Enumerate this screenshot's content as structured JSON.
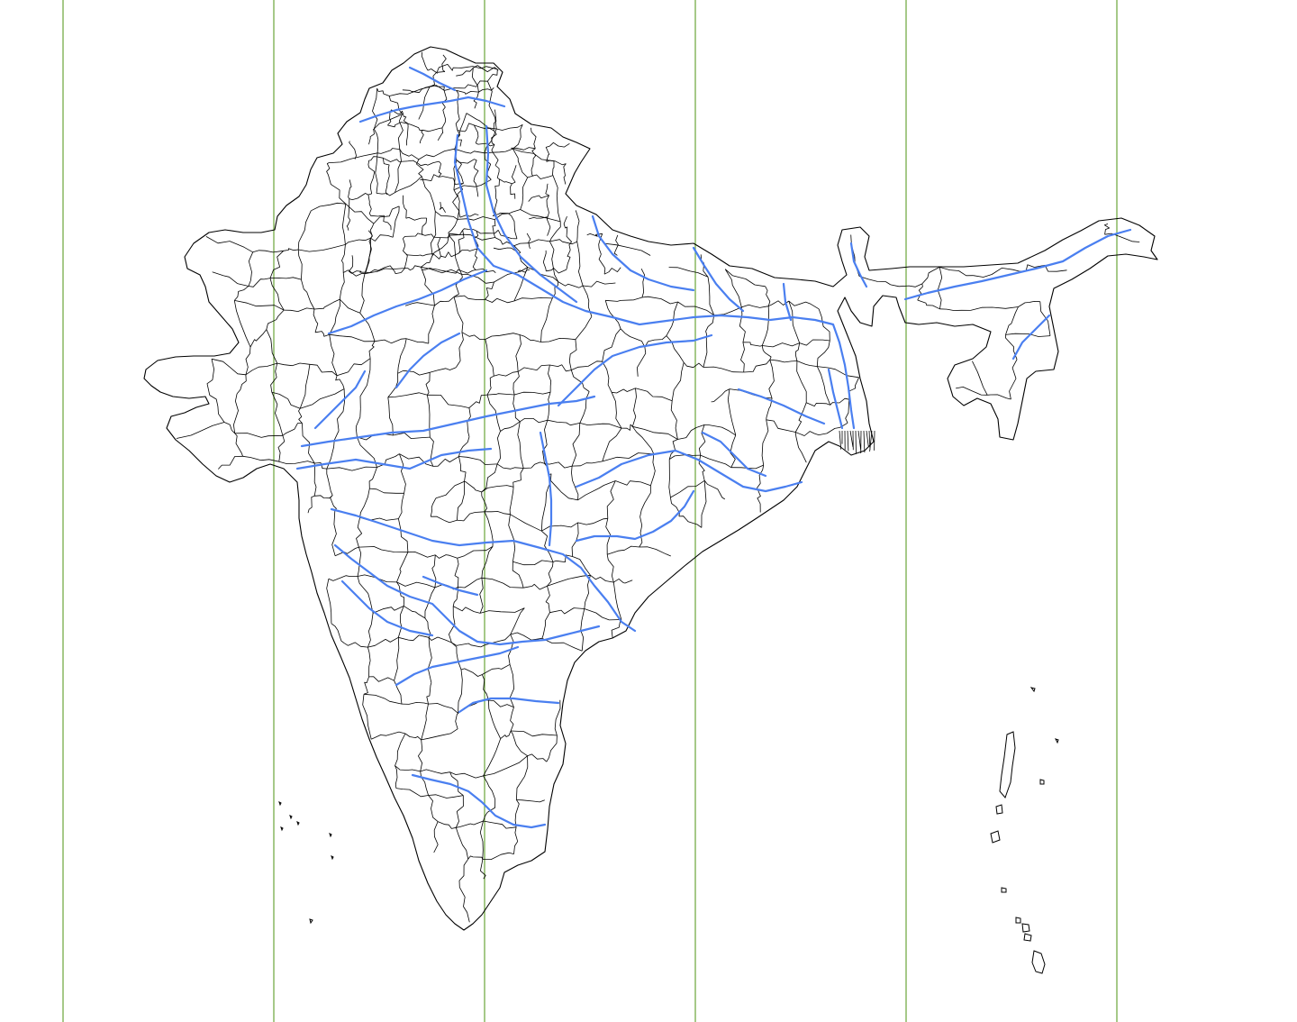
{
  "map": {
    "type": "district-map",
    "meridian_count": 6,
    "colors": {
      "background": "#ffffff",
      "district_border": "#000000",
      "river": "#4a7ff0",
      "meridian": "#6aa53a"
    },
    "layers": [
      "meridian-lines",
      "country-outline",
      "district-boundaries",
      "rivers",
      "islands"
    ]
  }
}
